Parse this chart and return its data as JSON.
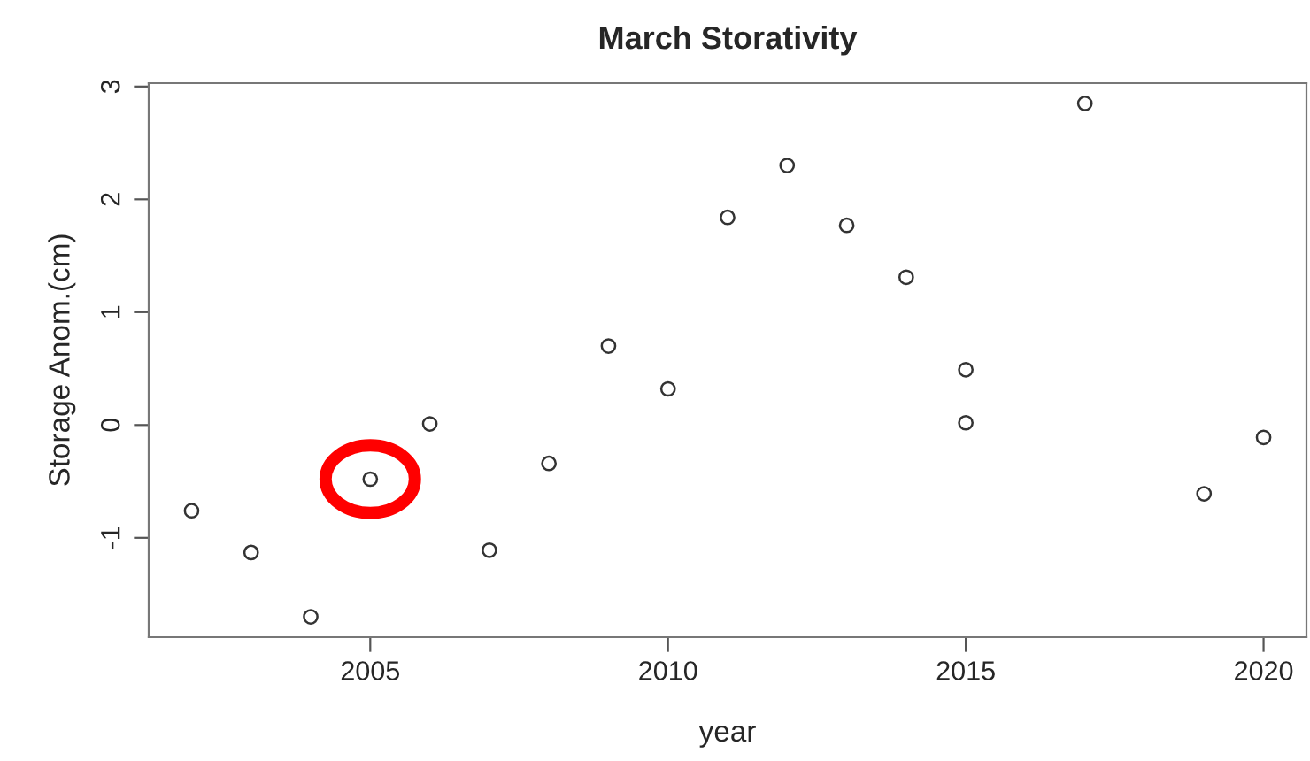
{
  "chart_data": {
    "type": "scatter",
    "title": "March Storativity",
    "xlabel": "year",
    "ylabel": "Storage Anom.(cm)",
    "x": [
      2002,
      2003,
      2004,
      2005,
      2006,
      2007,
      2008,
      2009,
      2010,
      2011,
      2012,
      2013,
      2014,
      2015,
      2015,
      2017,
      2019,
      2020
    ],
    "values": [
      -0.76,
      -1.13,
      -1.7,
      -0.48,
      0.01,
      -1.11,
      -0.34,
      0.7,
      0.32,
      1.84,
      2.3,
      1.77,
      1.31,
      0.49,
      0.02,
      2.85,
      -0.61,
      -0.11
    ],
    "color": "#333333",
    "marker": "circle",
    "xlim": [
      2001.28,
      2020.72
    ],
    "xticks": [
      2005,
      2010,
      2015,
      2020
    ],
    "ylim": [
      -1.88,
      3.03
    ],
    "yticks": [
      -1,
      0,
      1,
      2,
      3
    ],
    "grid": false,
    "legend": false
  }
}
